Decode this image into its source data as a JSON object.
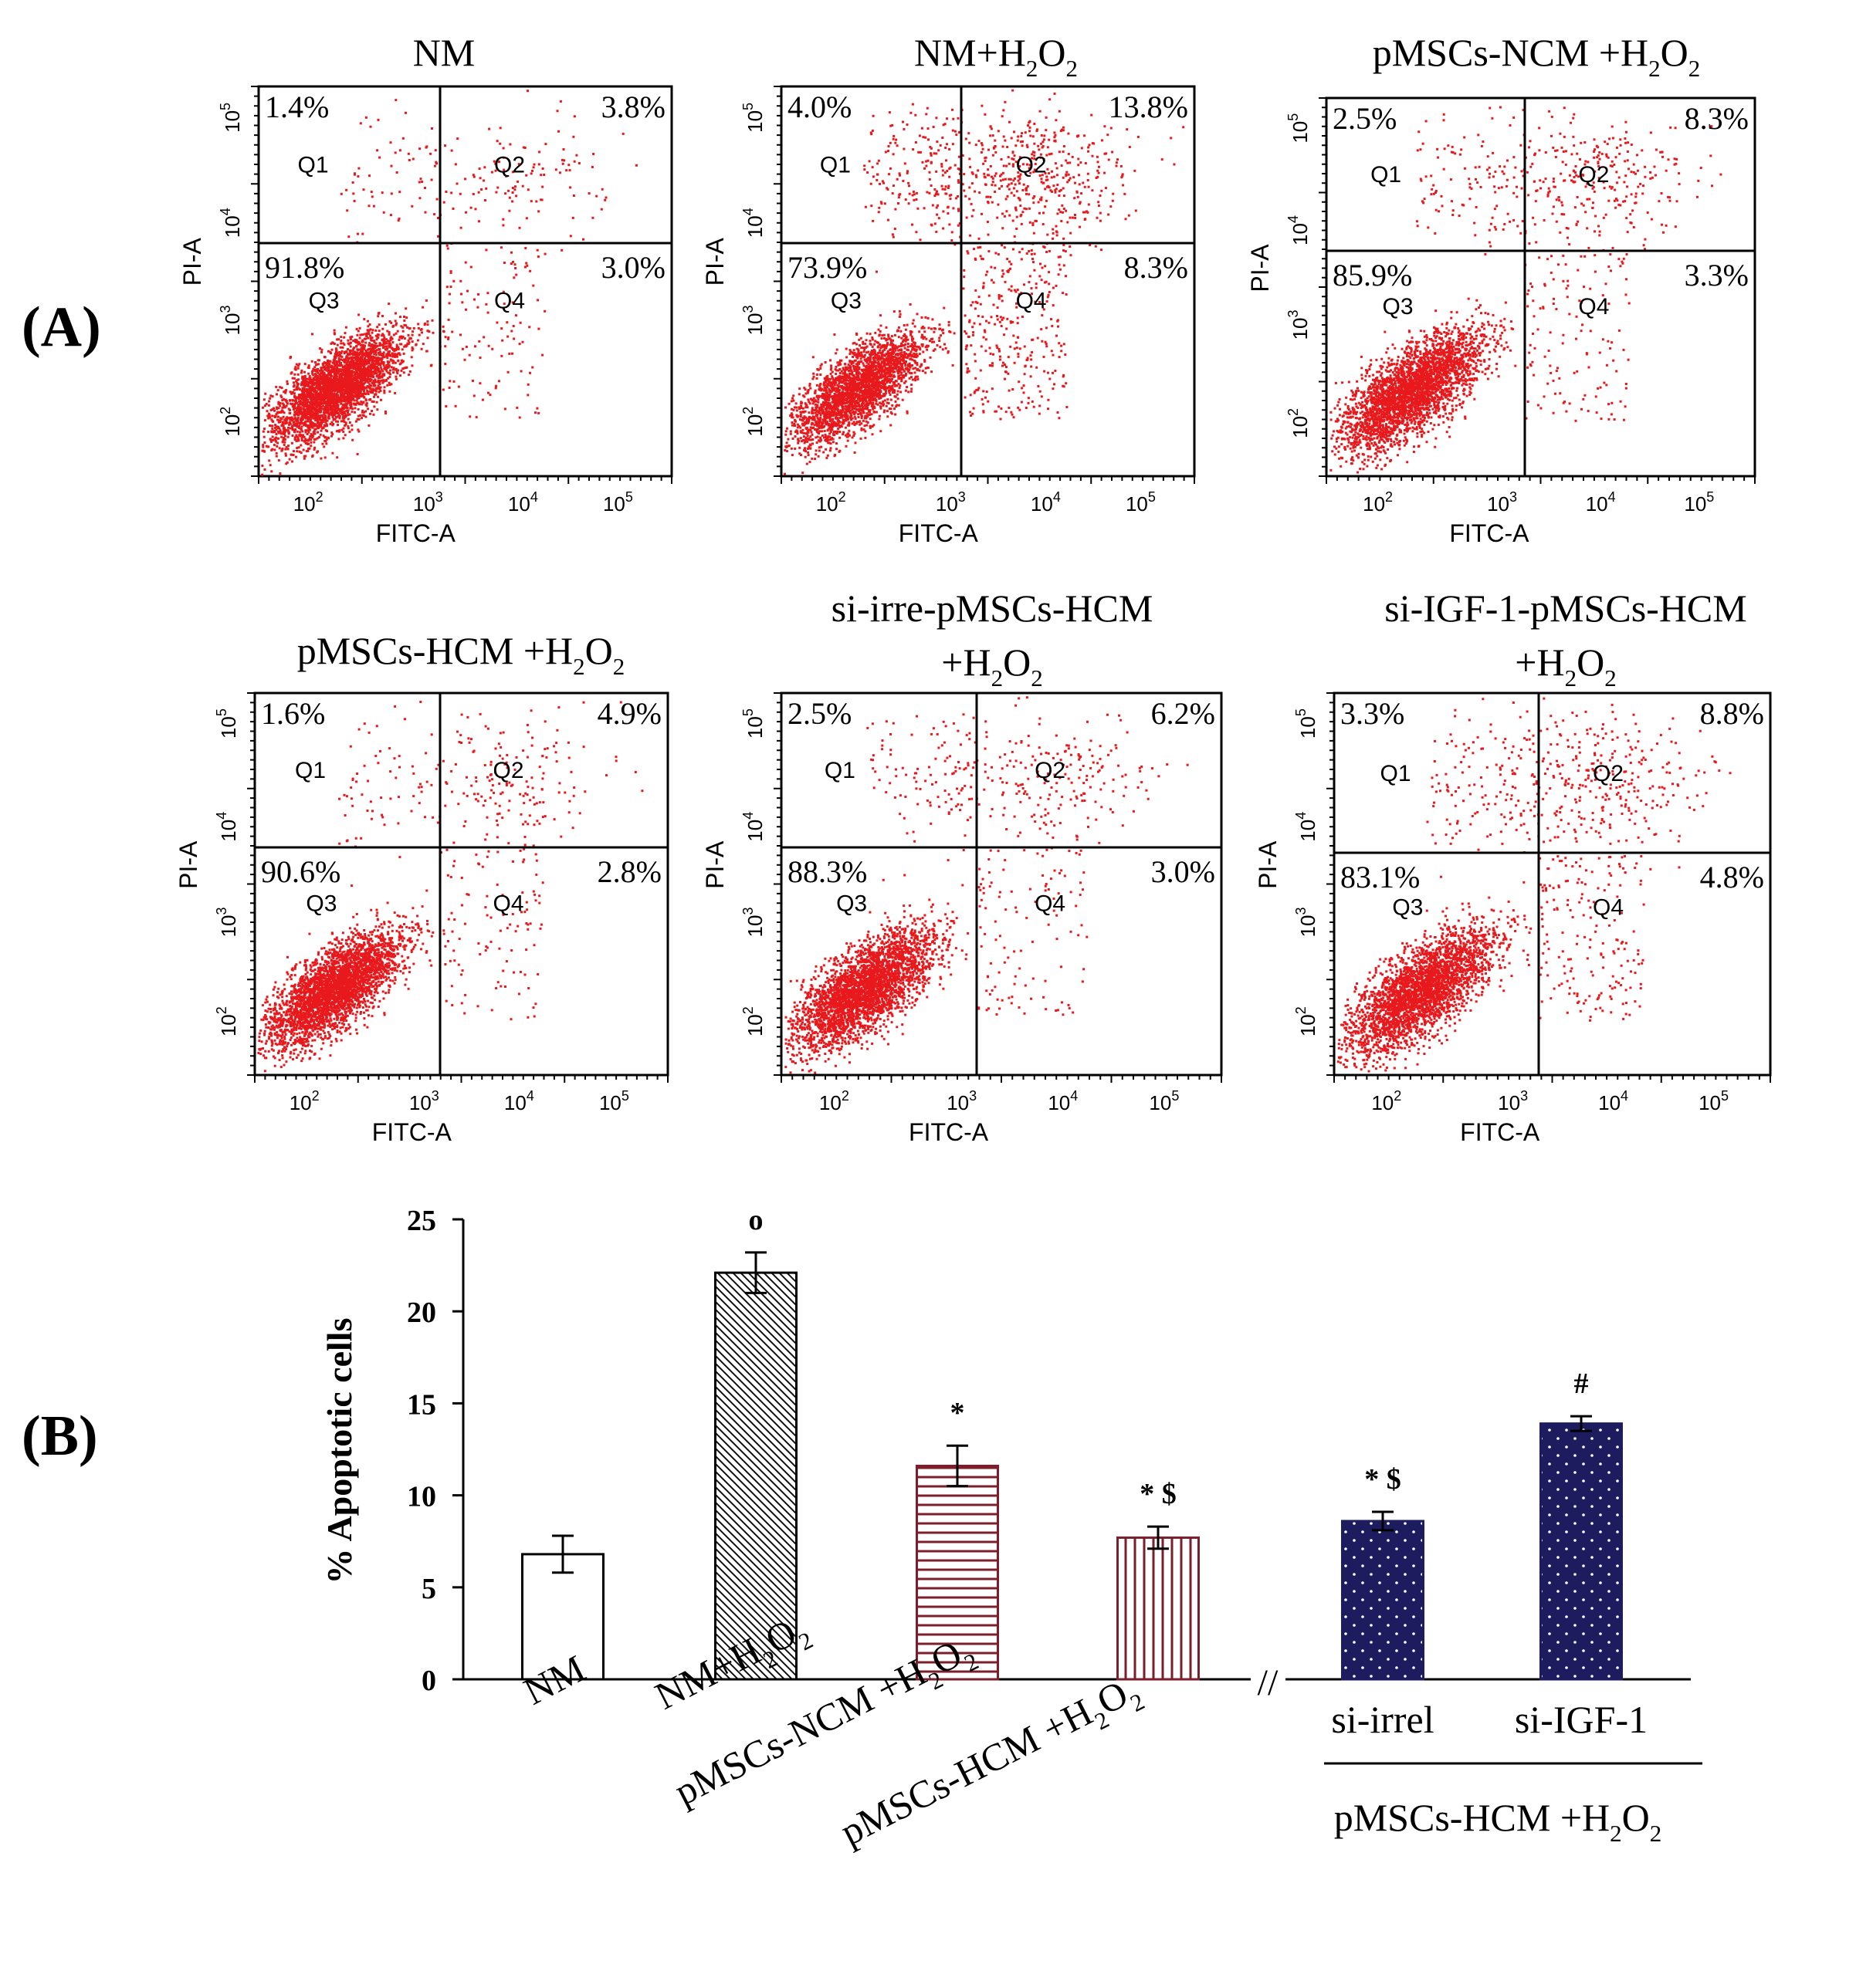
{
  "panel_labels": {
    "a": "(A)",
    "b": "(B)"
  },
  "chart_data": [
    {
      "type": "scatter",
      "title": "NM",
      "xlabel": "FITC-A",
      "ylabel": "PI-A",
      "scale": "log",
      "xticks": [
        "10^2",
        "10^3",
        "10^4",
        "10^5"
      ],
      "yticks": [
        "10^2",
        "10^3",
        "10^4",
        "10^5"
      ],
      "quadrant_labels": [
        "Q1",
        "Q2",
        "Q3",
        "Q4"
      ],
      "percents": {
        "Q1": "1.4%",
        "Q2": "3.8%",
        "Q3": "91.8%",
        "Q4": "3.0%"
      },
      "point_color": "#e8191c"
    },
    {
      "type": "scatter",
      "title": "NM+H2O2",
      "title_parts": [
        "NM+H",
        "2",
        "O",
        "2"
      ],
      "xlabel": "FITC-A",
      "ylabel": "PI-A",
      "scale": "log",
      "xticks": [
        "10^2",
        "10^3",
        "10^4",
        "10^5"
      ],
      "yticks": [
        "10^2",
        "10^3",
        "10^4",
        "10^5"
      ],
      "quadrant_labels": [
        "Q1",
        "Q2",
        "Q3",
        "Q4"
      ],
      "percents": {
        "Q1": "4.0%",
        "Q2": "13.8%",
        "Q3": "73.9%",
        "Q4": "8.3%"
      },
      "point_color": "#e8191c"
    },
    {
      "type": "scatter",
      "title": "pMSCs-NCM +H2O2",
      "title_parts": [
        "pMSCs-NCM +H",
        "2",
        "O",
        "2"
      ],
      "xlabel": "FITC-A",
      "ylabel": "PI-A",
      "scale": "log",
      "xticks": [
        "10^2",
        "10^3",
        "10^4",
        "10^5"
      ],
      "yticks": [
        "10^2",
        "10^3",
        "10^4",
        "10^5"
      ],
      "quadrant_labels": [
        "Q1",
        "Q2",
        "Q3",
        "Q4"
      ],
      "percents": {
        "Q1": "2.5%",
        "Q2": "8.3%",
        "Q3": "85.9%",
        "Q4": "3.3%"
      },
      "point_color": "#e8191c"
    },
    {
      "type": "scatter",
      "title": "pMSCs-HCM +H2O2",
      "title_parts": [
        "pMSCs-HCM +H",
        "2",
        "O",
        "2"
      ],
      "xlabel": "FITC-A",
      "ylabel": "PI-A",
      "scale": "log",
      "xticks": [
        "10^2",
        "10^3",
        "10^4",
        "10^5"
      ],
      "yticks": [
        "10^2",
        "10^3",
        "10^4",
        "10^5"
      ],
      "quadrant_labels": [
        "Q1",
        "Q2",
        "Q3",
        "Q4"
      ],
      "percents": {
        "Q1": "1.6%",
        "Q2": "4.9%",
        "Q3": "90.6%",
        "Q4": "2.8%"
      },
      "point_color": "#e8191c"
    },
    {
      "type": "scatter",
      "title": "si-irre-pMSCs-HCM +H2O2",
      "title_line1": "si-irre-pMSCs-HCM",
      "title_parts": [
        "+H",
        "2",
        "O",
        "2"
      ],
      "xlabel": "FITC-A",
      "ylabel": "PI-A",
      "scale": "log",
      "xticks": [
        "10^2",
        "10^3",
        "10^4",
        "10^5"
      ],
      "yticks": [
        "10^2",
        "10^3",
        "10^4",
        "10^5"
      ],
      "quadrant_labels": [
        "Q1",
        "Q2",
        "Q3",
        "Q4"
      ],
      "percents": {
        "Q1": "2.5%",
        "Q2": "6.2%",
        "Q3": "88.3%",
        "Q4": "3.0%"
      },
      "point_color": "#e8191c"
    },
    {
      "type": "scatter",
      "title": "si-IGF-1-pMSCs-HCM +H2O2",
      "title_line1": "si-IGF-1-pMSCs-HCM",
      "title_parts": [
        "+H",
        "2",
        "O",
        "2"
      ],
      "xlabel": "FITC-A",
      "ylabel": "PI-A",
      "scale": "log",
      "xticks": [
        "10^2",
        "10^3",
        "10^4",
        "10^5"
      ],
      "yticks": [
        "10^2",
        "10^3",
        "10^4",
        "10^5"
      ],
      "quadrant_labels": [
        "Q1",
        "Q2",
        "Q3",
        "Q4"
      ],
      "percents": {
        "Q1": "3.3%",
        "Q2": "8.8%",
        "Q3": "83.1%",
        "Q4": "4.8%"
      },
      "point_color": "#e8191c"
    },
    {
      "type": "bar",
      "ylabel": "% Apoptotic cells",
      "ylim": [
        0,
        25
      ],
      "yticks": [
        0,
        5,
        10,
        15,
        20,
        25
      ],
      "categories": [
        "NM",
        "NM+H2O2",
        "pMSCs-NCM +H2O2",
        "pMSCs-HCM +H2O2",
        "si-irrel",
        "si-IGF-1"
      ],
      "category_parts": [
        [
          "NM"
        ],
        [
          "NM+H",
          "2",
          "O",
          "2"
        ],
        [
          "pMSCs-NCM +H",
          "2",
          "O",
          "2"
        ],
        [
          "pMSCs-HCM +H",
          "2",
          "O",
          "2"
        ],
        [
          "si-irrel"
        ],
        [
          "si-IGF-1"
        ]
      ],
      "values": [
        6.8,
        22.1,
        11.6,
        7.7,
        8.6,
        13.9
      ],
      "errors": [
        1.0,
        1.1,
        1.1,
        0.6,
        0.5,
        0.4
      ],
      "markers": [
        "",
        "o",
        "*",
        "* $",
        "* $",
        "#"
      ],
      "patterns": [
        "none",
        "diagonal",
        "horizontal",
        "vertical",
        "dots",
        "dots"
      ],
      "colors": {
        "outline_dark": "#000000",
        "maroon": "#7a1f2b",
        "navy": "#1c1c5e",
        "dot": "#ffffff"
      },
      "group_label_parts": [
        "pMSCs-HCM +H",
        "2",
        "O",
        "2"
      ],
      "axis_break": "//"
    }
  ]
}
